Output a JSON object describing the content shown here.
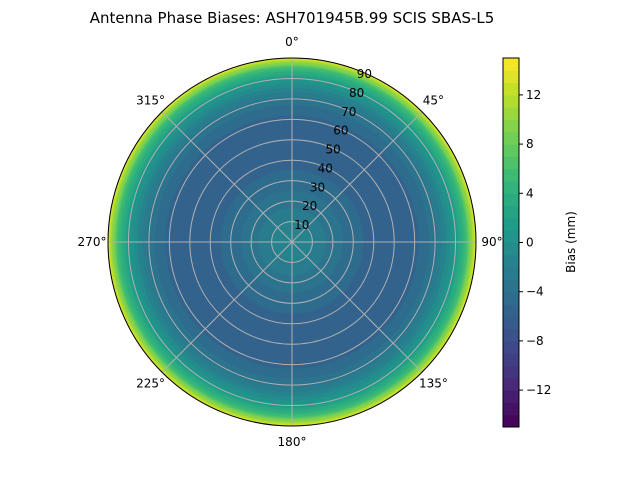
{
  "chart_data": {
    "type": "polar-contour",
    "title": "Antenna Phase Biases: ASH701945B.99   SCIS SBAS-L5",
    "angular_ticks": [
      "0°",
      "45°",
      "90°",
      "135°",
      "180°",
      "225°",
      "270°",
      "315°"
    ],
    "radial_ticks": [
      "10",
      "20",
      "30",
      "40",
      "50",
      "60",
      "70",
      "80",
      "90"
    ],
    "radial_range": [
      0,
      90
    ],
    "grid": true,
    "colormap": "viridis",
    "colorbar": {
      "label": "Bias (mm)",
      "range": [
        -15,
        15
      ],
      "ticks": [
        "12",
        "8",
        "4",
        "0",
        "−4",
        "−8",
        "−12"
      ],
      "tick_values": [
        12,
        8,
        4,
        0,
        -4,
        -8,
        -12
      ]
    },
    "radial_profile": {
      "zenith_angle": [
        0,
        10,
        20,
        30,
        40,
        50,
        60,
        70,
        75,
        80,
        85,
        90
      ],
      "bias_mm": [
        -1,
        -2,
        -3.5,
        -4.5,
        -5.5,
        -6,
        -5.5,
        -3.5,
        -1.5,
        1,
        5,
        13
      ]
    }
  }
}
